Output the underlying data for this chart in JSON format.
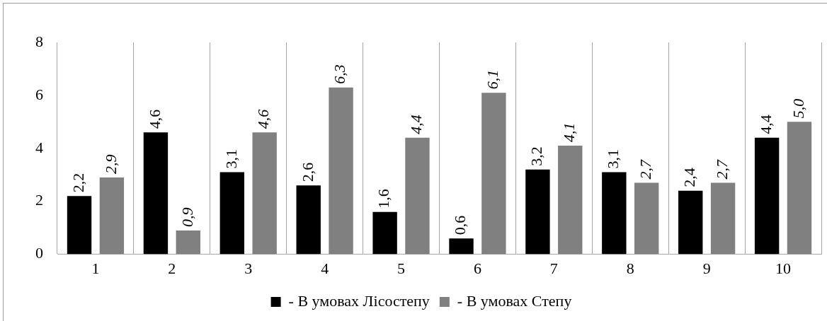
{
  "chart_data": {
    "type": "bar",
    "categories": [
      "1",
      "2",
      "3",
      "4",
      "5",
      "6",
      "7",
      "8",
      "9",
      "10"
    ],
    "series": [
      {
        "name": "- В умовах Лісостепу",
        "color": "#000000",
        "values": [
          2.2,
          4.6,
          3.1,
          2.6,
          1.6,
          0.6,
          3.2,
          3.1,
          2.4,
          4.4
        ],
        "value_labels": [
          "2,2",
          "4,6",
          "3,1",
          "2,6",
          "1,6",
          "0,6",
          "3,2",
          "3,1",
          "2,4",
          "4,4"
        ]
      },
      {
        "name": "- В умовах Степу",
        "color": "#808080",
        "values": [
          2.9,
          0.9,
          4.6,
          6.3,
          4.4,
          6.1,
          4.1,
          2.7,
          2.7,
          5.0
        ],
        "value_labels": [
          "2,9",
          "0,9",
          "4,6",
          "6,3",
          "4,4",
          "6,1",
          "4,1",
          "2,7",
          "2,7",
          "5,0"
        ]
      }
    ],
    "ylim": [
      0,
      8
    ],
    "yticks": [
      0,
      2,
      4,
      6,
      8
    ],
    "grid": "x",
    "legend": "bottom"
  }
}
